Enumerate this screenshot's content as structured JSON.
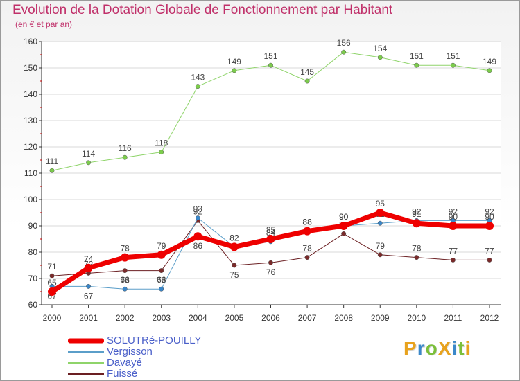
{
  "title": "Evolution de la Dotation Globale de Fonctionnement par Habitant",
  "subtitle": "(en € et par an)",
  "brand": {
    "text": "ProXiti",
    "letters": [
      "P",
      "r",
      "o",
      "X",
      "i",
      "t",
      "i"
    ],
    "colors": [
      "#e8a21c",
      "#3b88c9",
      "#7bbf3a",
      "#e8a21c",
      "#3b88c9",
      "#7bbf3a",
      "#e8a21c"
    ]
  },
  "chart_data": {
    "type": "line",
    "title": "Evolution de la Dotation Globale de Fonctionnement par Habitant",
    "subtitle": "(en € et par an)",
    "xlabel": "",
    "ylabel": "",
    "ylim": [
      60,
      160
    ],
    "yticks": [
      "60",
      "70",
      "80",
      "90",
      "100",
      "110",
      "120",
      "130",
      "140",
      "150",
      "160"
    ],
    "categories": [
      "2000",
      "2001",
      "2002",
      "2003",
      "2004",
      "2005",
      "2006",
      "2007",
      "2008",
      "2009",
      "2010",
      "2011",
      "2012"
    ],
    "series": [
      {
        "name": "Fuissé",
        "color": "#6b1f22",
        "marker": "#7a2a2a",
        "width": 1,
        "values": [
          71,
          72,
          73,
          73,
          92,
          75,
          76,
          78,
          87,
          79,
          78,
          77,
          77
        ],
        "labels": [
          "71",
          "72",
          "73",
          "73",
          "92",
          "75",
          "76",
          "78",
          "87",
          "79",
          "78",
          "77",
          "77"
        ],
        "label_pos": [
          "above",
          "above",
          "below",
          "below",
          "above",
          "below",
          "below",
          "above",
          "above",
          "above",
          "above",
          "above",
          "above"
        ]
      },
      {
        "name": "Vergisson",
        "color": "#5b9ec9",
        "marker": "#3a86c8",
        "width": 1,
        "values": [
          67,
          67,
          66,
          66,
          93,
          82,
          84,
          88,
          90,
          91,
          92,
          92,
          92
        ],
        "labels": [
          "67",
          "67",
          "66",
          "66",
          "93",
          "82",
          "84",
          "88",
          "90",
          "91",
          "92",
          "92",
          "92"
        ],
        "label_pos": [
          "below",
          "below",
          "above",
          "above",
          "above",
          "above",
          "above",
          "above",
          "above",
          "above",
          "above",
          "above",
          "above"
        ]
      },
      {
        "name": "Davayé",
        "color": "#8fd46a",
        "marker": "#7ccc4c",
        "width": 1,
        "values": [
          111,
          114,
          116,
          118,
          143,
          149,
          151,
          145,
          156,
          154,
          151,
          151,
          149
        ],
        "labels": [
          "111",
          "114",
          "116",
          "118",
          "143",
          "149",
          "151",
          "145",
          "156",
          "154",
          "151",
          "151",
          "149"
        ],
        "label_pos": [
          "above",
          "above",
          "above",
          "above",
          "above",
          "above",
          "above",
          "above",
          "above",
          "above",
          "above",
          "above",
          "above"
        ]
      },
      {
        "name": "SOLUTRé-POUILLY",
        "color": "#ee0000",
        "marker": "#ee0000",
        "width": 7,
        "values": [
          65,
          74,
          78,
          79,
          86,
          82,
          85,
          88,
          90,
          95,
          91,
          90,
          90
        ],
        "labels": [
          "65",
          "74",
          "78",
          "79",
          "86",
          "82",
          "85",
          "88",
          "90",
          "95",
          "91",
          "90",
          "90"
        ],
        "label_pos": [
          "above",
          "above",
          "above",
          "above",
          "below",
          "above",
          "above",
          "above",
          "above",
          "above",
          "above",
          "above",
          "above"
        ]
      }
    ],
    "legend": [
      {
        "name": "SOLUTRé-POUILLY",
        "color": "#ee0000",
        "thickness": 7,
        "text_color": "#4a5fc9"
      },
      {
        "name": "Vergisson",
        "color": "#5b9ec9",
        "thickness": 2,
        "text_color": "#4a5fc9"
      },
      {
        "name": "Davayé",
        "color": "#8fd46a",
        "thickness": 2,
        "text_color": "#4a5fc9"
      },
      {
        "name": "Fuissé",
        "color": "#6b1f22",
        "thickness": 2,
        "text_color": "#4a5fc9"
      }
    ]
  }
}
